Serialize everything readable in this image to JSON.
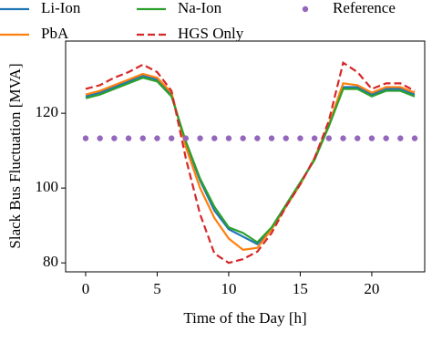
{
  "chart_data": {
    "type": "line",
    "xlabel": "Time of the Day [h]",
    "ylabel": "Slack Bus Fluctuation [MVA]",
    "x": [
      0,
      1,
      2,
      3,
      4,
      5,
      6,
      7,
      8,
      9,
      10,
      11,
      12,
      13,
      14,
      15,
      16,
      17,
      18,
      19,
      20,
      21,
      22,
      23
    ],
    "series": [
      {
        "name": "Li-Ion",
        "color": "#1f77b4",
        "style": "solid",
        "values": [
          124.5,
          125.5,
          127,
          128.5,
          130,
          129,
          125,
          112,
          102,
          94,
          89,
          87,
          85,
          89,
          95,
          101,
          108,
          117,
          127,
          127,
          125,
          126.5,
          126.5,
          125
        ]
      },
      {
        "name": "PbA",
        "color": "#ff7f0e",
        "style": "solid",
        "values": [
          125,
          126,
          127.5,
          129,
          130.5,
          129.5,
          125.5,
          111,
          100,
          92,
          86.5,
          83.5,
          84,
          89,
          95,
          101,
          108,
          117,
          128,
          127.5,
          125.5,
          127,
          127,
          125.5
        ]
      },
      {
        "name": "Na-Ion",
        "color": "#2ca02c",
        "style": "solid",
        "values": [
          124,
          125,
          126.5,
          128,
          129.5,
          128.5,
          124.5,
          112.5,
          102.5,
          95,
          89.5,
          88,
          85.5,
          89.5,
          95.5,
          101.5,
          107.5,
          116.5,
          126.5,
          126.5,
          124.5,
          126,
          126,
          124.5
        ]
      },
      {
        "name": "HGS Only",
        "color": "#d62728",
        "style": "dashed",
        "values": [
          126.5,
          127.5,
          129.5,
          131,
          133,
          131,
          126,
          108,
          93,
          82.5,
          80,
          81,
          83,
          88,
          95,
          101,
          108,
          118,
          133.5,
          131,
          126.5,
          128,
          128,
          126
        ]
      },
      {
        "name": "Reference",
        "color": "#9467bd",
        "style": "dots",
        "values": [
          113.3,
          113.3,
          113.3,
          113.3,
          113.3,
          113.3,
          113.3,
          113.3,
          113.3,
          113.3,
          113.3,
          113.3,
          113.3,
          113.3,
          113.3,
          113.3,
          113.3,
          113.3,
          113.3,
          113.3,
          113.3,
          113.3,
          113.3,
          113.3
        ]
      }
    ],
    "xlim": [
      -1.4,
      23.7
    ],
    "xticks": [
      0,
      5,
      10,
      15,
      20
    ],
    "ylim": [
      77.6,
      139.3
    ],
    "yticks": [
      80,
      100,
      120
    ]
  }
}
